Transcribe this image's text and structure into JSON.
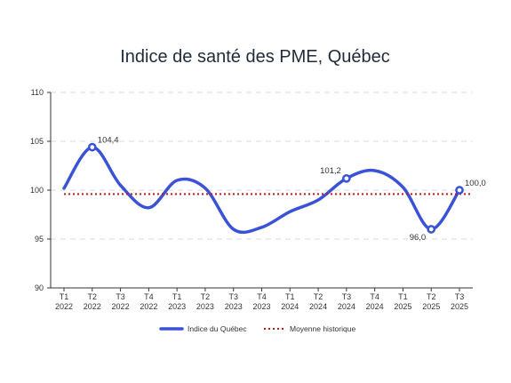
{
  "chart_data": {
    "type": "line",
    "title": "Indice de santé des PME, Québec",
    "xlabel": "",
    "ylabel": "",
    "ylim": [
      90,
      110
    ],
    "yticks": [
      "90",
      "95",
      "100",
      "105",
      "110"
    ],
    "ytick_values": [
      90,
      95,
      100,
      105,
      110
    ],
    "categories": [
      [
        "T1",
        "2022"
      ],
      [
        "T2",
        "2022"
      ],
      [
        "T3",
        "2022"
      ],
      [
        "T4",
        "2022"
      ],
      [
        "T1",
        "2023"
      ],
      [
        "T2",
        "2023"
      ],
      [
        "T3",
        "2023"
      ],
      [
        "T4",
        "2023"
      ],
      [
        "T1",
        "2024"
      ],
      [
        "T2",
        "2024"
      ],
      [
        "T3",
        "2024"
      ],
      [
        "T4",
        "2024"
      ],
      [
        "T1",
        "2025"
      ],
      [
        "T2",
        "2025"
      ],
      [
        "T3",
        "2025"
      ]
    ],
    "grid": true,
    "legend_position": "bottom-center",
    "series": [
      {
        "name": "Indice du Québec",
        "color": "#3a53d6",
        "style": "solid-smooth",
        "values": [
          100.2,
          104.4,
          100.5,
          98.2,
          101.0,
          100.2,
          96.0,
          96.2,
          97.8,
          99.0,
          101.2,
          102.0,
          100.3,
          96.0,
          100.0
        ]
      },
      {
        "name": "Moyenne historique",
        "color": "#c0171b",
        "style": "dotted",
        "values": [
          99.6,
          99.6,
          99.6,
          99.6,
          99.6,
          99.6,
          99.6,
          99.6,
          99.6,
          99.6,
          99.6,
          99.6,
          99.6,
          99.6,
          99.6
        ]
      }
    ],
    "annotations": [
      {
        "index": 1,
        "label": "104,4",
        "position": "right"
      },
      {
        "index": 10,
        "label": "101,2",
        "position": "left"
      },
      {
        "index": 13,
        "label": "96,0",
        "position": "left"
      },
      {
        "index": 14,
        "label": "100,0",
        "position": "right"
      }
    ]
  }
}
